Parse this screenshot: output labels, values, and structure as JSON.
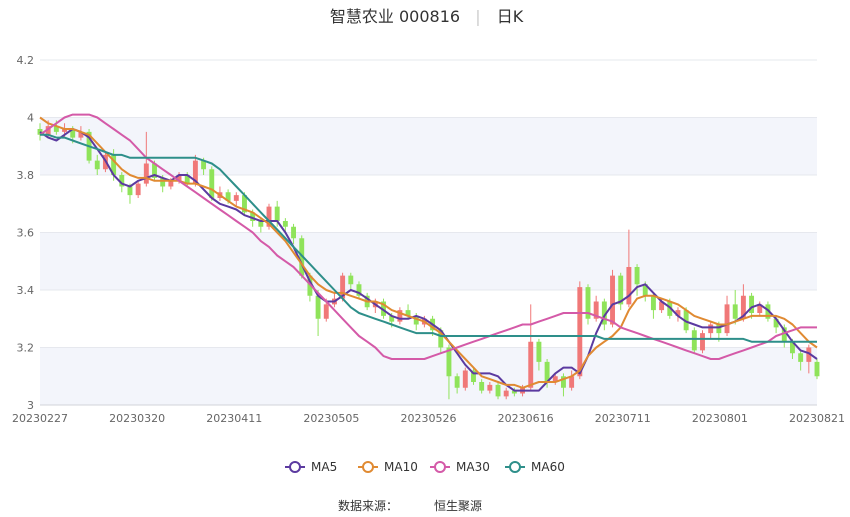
{
  "chart_data": {
    "type": "candlestick",
    "title": "智慧农业 000816",
    "period_label": "日K",
    "ylim": [
      3.0,
      4.2
    ],
    "y_ticks": [
      "3",
      "3.2",
      "3.4",
      "3.6",
      "3.8",
      "4",
      "4.2"
    ],
    "x_ticks": [
      "20230227",
      "20230320",
      "20230411",
      "20230505",
      "20230526",
      "20230616",
      "20230711",
      "20230801",
      "20230821"
    ],
    "colors": {
      "up": "#f07878",
      "down": "#8fe35a",
      "band": "#f3f5fb",
      "MA5": "#5b3aa0",
      "MA10": "#e08a32",
      "MA30": "#d45aa8",
      "MA60": "#2e8f8a"
    },
    "series": [
      {
        "name": "MA5",
        "values": [
          3.95,
          3.93,
          3.92,
          3.94,
          3.96,
          3.95,
          3.93,
          3.89,
          3.85,
          3.8,
          3.77,
          3.76,
          3.78,
          3.79,
          3.8,
          3.79,
          3.78,
          3.8,
          3.8,
          3.78,
          3.75,
          3.72,
          3.7,
          3.69,
          3.68,
          3.66,
          3.65,
          3.64,
          3.64,
          3.64,
          3.6,
          3.55,
          3.49,
          3.43,
          3.38,
          3.36,
          3.36,
          3.38,
          3.4,
          3.39,
          3.37,
          3.35,
          3.33,
          3.31,
          3.3,
          3.3,
          3.31,
          3.3,
          3.28,
          3.26,
          3.22,
          3.18,
          3.14,
          3.11,
          3.11,
          3.11,
          3.1,
          3.07,
          3.05,
          3.05,
          3.05,
          3.05,
          3.08,
          3.11,
          3.13,
          3.13,
          3.11,
          3.17,
          3.25,
          3.31,
          3.35,
          3.36,
          3.38,
          3.41,
          3.42,
          3.39,
          3.36,
          3.34,
          3.31,
          3.29,
          3.28,
          3.27,
          3.27,
          3.27,
          3.28,
          3.29,
          3.31,
          3.34,
          3.35,
          3.33,
          3.3,
          3.26,
          3.22,
          3.19,
          3.18,
          3.16
        ]
      },
      {
        "name": "MA10",
        "values": [
          4.0,
          3.98,
          3.97,
          3.96,
          3.96,
          3.95,
          3.94,
          3.91,
          3.88,
          3.85,
          3.82,
          3.8,
          3.79,
          3.79,
          3.78,
          3.78,
          3.78,
          3.78,
          3.77,
          3.77,
          3.76,
          3.75,
          3.73,
          3.71,
          3.69,
          3.68,
          3.67,
          3.65,
          3.63,
          3.6,
          3.57,
          3.53,
          3.49,
          3.45,
          3.42,
          3.4,
          3.39,
          3.39,
          3.38,
          3.37,
          3.36,
          3.36,
          3.35,
          3.33,
          3.32,
          3.31,
          3.3,
          3.29,
          3.27,
          3.25,
          3.22,
          3.19,
          3.16,
          3.13,
          3.1,
          3.09,
          3.08,
          3.07,
          3.07,
          3.06,
          3.07,
          3.08,
          3.08,
          3.08,
          3.09,
          3.1,
          3.12,
          3.17,
          3.2,
          3.22,
          3.24,
          3.27,
          3.33,
          3.37,
          3.38,
          3.38,
          3.37,
          3.36,
          3.35,
          3.33,
          3.31,
          3.3,
          3.29,
          3.28,
          3.28,
          3.29,
          3.3,
          3.31,
          3.31,
          3.31,
          3.31,
          3.3,
          3.28,
          3.25,
          3.22,
          3.2
        ]
      },
      {
        "name": "MA30",
        "values": [
          3.94,
          3.96,
          3.98,
          4.0,
          4.01,
          4.01,
          4.01,
          4.0,
          3.98,
          3.96,
          3.94,
          3.92,
          3.89,
          3.86,
          3.84,
          3.82,
          3.8,
          3.78,
          3.76,
          3.74,
          3.72,
          3.7,
          3.68,
          3.66,
          3.64,
          3.62,
          3.6,
          3.57,
          3.55,
          3.52,
          3.5,
          3.48,
          3.45,
          3.42,
          3.39,
          3.36,
          3.33,
          3.3,
          3.27,
          3.24,
          3.22,
          3.2,
          3.17,
          3.16,
          3.16,
          3.16,
          3.16,
          3.16,
          3.17,
          3.18,
          3.19,
          3.2,
          3.21,
          3.22,
          3.23,
          3.24,
          3.25,
          3.26,
          3.27,
          3.28,
          3.28,
          3.29,
          3.3,
          3.31,
          3.32,
          3.32,
          3.32,
          3.32,
          3.31,
          3.3,
          3.29,
          3.27,
          3.26,
          3.25,
          3.24,
          3.23,
          3.22,
          3.21,
          3.2,
          3.19,
          3.18,
          3.17,
          3.16,
          3.16,
          3.17,
          3.18,
          3.19,
          3.2,
          3.21,
          3.22,
          3.24,
          3.25,
          3.26,
          3.27,
          3.27,
          3.27
        ]
      },
      {
        "name": "MA60",
        "values": [
          3.94,
          3.94,
          3.93,
          3.93,
          3.92,
          3.91,
          3.9,
          3.89,
          3.88,
          3.87,
          3.87,
          3.86,
          3.86,
          3.86,
          3.86,
          3.86,
          3.86,
          3.86,
          3.86,
          3.86,
          3.85,
          3.84,
          3.82,
          3.79,
          3.76,
          3.73,
          3.7,
          3.67,
          3.64,
          3.61,
          3.58,
          3.55,
          3.52,
          3.49,
          3.46,
          3.43,
          3.4,
          3.37,
          3.34,
          3.32,
          3.31,
          3.3,
          3.29,
          3.28,
          3.27,
          3.26,
          3.25,
          3.25,
          3.25,
          3.24,
          3.24,
          3.24,
          3.24,
          3.24,
          3.24,
          3.24,
          3.24,
          3.24,
          3.24,
          3.24,
          3.24,
          3.24,
          3.24,
          3.24,
          3.24,
          3.24,
          3.24,
          3.24,
          3.24,
          3.23,
          3.23,
          3.23,
          3.23,
          3.23,
          3.23,
          3.23,
          3.23,
          3.23,
          3.23,
          3.23,
          3.23,
          3.23,
          3.23,
          3.23,
          3.23,
          3.23,
          3.23,
          3.22,
          3.22,
          3.22,
          3.22,
          3.22,
          3.22,
          3.22,
          3.22,
          3.22
        ]
      }
    ],
    "candles": [
      [
        3.96,
        3.94,
        3.98,
        3.92
      ],
      [
        3.94,
        3.97,
        3.99,
        3.93
      ],
      [
        3.97,
        3.95,
        3.99,
        3.94
      ],
      [
        3.95,
        3.96,
        3.98,
        3.93
      ],
      [
        3.96,
        3.93,
        3.97,
        3.91
      ],
      [
        3.93,
        3.95,
        3.97,
        3.92
      ],
      [
        3.95,
        3.85,
        3.96,
        3.84
      ],
      [
        3.85,
        3.82,
        3.87,
        3.8
      ],
      [
        3.82,
        3.87,
        3.88,
        3.81
      ],
      [
        3.87,
        3.8,
        3.89,
        3.78
      ],
      [
        3.8,
        3.76,
        3.81,
        3.74
      ],
      [
        3.76,
        3.73,
        3.77,
        3.7
      ],
      [
        3.73,
        3.77,
        3.78,
        3.72
      ],
      [
        3.77,
        3.84,
        3.95,
        3.76
      ],
      [
        3.84,
        3.79,
        3.85,
        3.78
      ],
      [
        3.79,
        3.76,
        3.8,
        3.74
      ],
      [
        3.76,
        3.78,
        3.79,
        3.75
      ],
      [
        3.78,
        3.8,
        3.81,
        3.77
      ],
      [
        3.8,
        3.77,
        3.81,
        3.76
      ],
      [
        3.77,
        3.85,
        3.87,
        3.76
      ],
      [
        3.85,
        3.82,
        3.86,
        3.8
      ],
      [
        3.82,
        3.72,
        3.83,
        3.71
      ],
      [
        3.72,
        3.74,
        3.76,
        3.71
      ],
      [
        3.74,
        3.71,
        3.75,
        3.7
      ],
      [
        3.71,
        3.73,
        3.74,
        3.69
      ],
      [
        3.73,
        3.67,
        3.74,
        3.66
      ],
      [
        3.67,
        3.64,
        3.68,
        3.62
      ],
      [
        3.64,
        3.62,
        3.65,
        3.6
      ],
      [
        3.62,
        3.69,
        3.7,
        3.61
      ],
      [
        3.69,
        3.64,
        3.71,
        3.62
      ],
      [
        3.64,
        3.62,
        3.65,
        3.6
      ],
      [
        3.62,
        3.58,
        3.63,
        3.56
      ],
      [
        3.58,
        3.45,
        3.59,
        3.44
      ],
      [
        3.45,
        3.38,
        3.46,
        3.36
      ],
      [
        3.38,
        3.3,
        3.4,
        3.24
      ],
      [
        3.3,
        3.35,
        3.37,
        3.29
      ],
      [
        3.35,
        3.37,
        3.39,
        3.34
      ],
      [
        3.37,
        3.45,
        3.46,
        3.36
      ],
      [
        3.45,
        3.42,
        3.46,
        3.4
      ],
      [
        3.42,
        3.38,
        3.43,
        3.37
      ],
      [
        3.38,
        3.34,
        3.39,
        3.33
      ],
      [
        3.34,
        3.36,
        3.37,
        3.32
      ],
      [
        3.36,
        3.31,
        3.37,
        3.3
      ],
      [
        3.31,
        3.29,
        3.32,
        3.27
      ],
      [
        3.29,
        3.33,
        3.34,
        3.28
      ],
      [
        3.33,
        3.31,
        3.35,
        3.3
      ],
      [
        3.31,
        3.28,
        3.32,
        3.26
      ],
      [
        3.28,
        3.3,
        3.31,
        3.27
      ],
      [
        3.3,
        3.26,
        3.31,
        3.24
      ],
      [
        3.26,
        3.2,
        3.27,
        3.18
      ],
      [
        3.2,
        3.1,
        3.21,
        3.02
      ],
      [
        3.1,
        3.06,
        3.11,
        3.04
      ],
      [
        3.06,
        3.12,
        3.13,
        3.05
      ],
      [
        3.12,
        3.08,
        3.13,
        3.07
      ],
      [
        3.08,
        3.05,
        3.09,
        3.04
      ],
      [
        3.05,
        3.07,
        3.08,
        3.04
      ],
      [
        3.07,
        3.03,
        3.08,
        3.02
      ],
      [
        3.03,
        3.05,
        3.06,
        3.02
      ],
      [
        3.05,
        3.04,
        3.06,
        3.03
      ],
      [
        3.04,
        3.06,
        3.07,
        3.03
      ],
      [
        3.06,
        3.22,
        3.35,
        3.05
      ],
      [
        3.22,
        3.15,
        3.23,
        3.12
      ],
      [
        3.15,
        3.08,
        3.16,
        3.06
      ],
      [
        3.08,
        3.1,
        3.11,
        3.07
      ],
      [
        3.1,
        3.06,
        3.11,
        3.03
      ],
      [
        3.06,
        3.1,
        3.12,
        3.05
      ],
      [
        3.1,
        3.41,
        3.43,
        3.09
      ],
      [
        3.41,
        3.3,
        3.42,
        3.28
      ],
      [
        3.3,
        3.36,
        3.38,
        3.29
      ],
      [
        3.36,
        3.28,
        3.37,
        3.26
      ],
      [
        3.28,
        3.45,
        3.47,
        3.27
      ],
      [
        3.45,
        3.35,
        3.46,
        3.33
      ],
      [
        3.35,
        3.48,
        3.61,
        3.34
      ],
      [
        3.48,
        3.42,
        3.49,
        3.38
      ],
      [
        3.42,
        3.38,
        3.43,
        3.36
      ],
      [
        3.38,
        3.33,
        3.39,
        3.3
      ],
      [
        3.33,
        3.36,
        3.37,
        3.32
      ],
      [
        3.36,
        3.31,
        3.37,
        3.3
      ],
      [
        3.31,
        3.33,
        3.34,
        3.29
      ],
      [
        3.33,
        3.26,
        3.34,
        3.25
      ],
      [
        3.26,
        3.19,
        3.27,
        3.18
      ],
      [
        3.19,
        3.25,
        3.26,
        3.18
      ],
      [
        3.25,
        3.28,
        3.29,
        3.23
      ],
      [
        3.28,
        3.25,
        3.29,
        3.22
      ],
      [
        3.25,
        3.35,
        3.38,
        3.24
      ],
      [
        3.35,
        3.3,
        3.4,
        3.28
      ],
      [
        3.3,
        3.38,
        3.42,
        3.29
      ],
      [
        3.38,
        3.32,
        3.39,
        3.3
      ],
      [
        3.32,
        3.35,
        3.36,
        3.31
      ],
      [
        3.35,
        3.3,
        3.36,
        3.29
      ],
      [
        3.3,
        3.27,
        3.31,
        3.25
      ],
      [
        3.27,
        3.22,
        3.28,
        3.2
      ],
      [
        3.22,
        3.18,
        3.23,
        3.16
      ],
      [
        3.18,
        3.15,
        3.19,
        3.12
      ],
      [
        3.15,
        3.2,
        3.21,
        3.11
      ],
      [
        3.15,
        3.1,
        3.16,
        3.09
      ]
    ],
    "source_label": "数据来源：",
    "source_value": "恒生聚源"
  }
}
